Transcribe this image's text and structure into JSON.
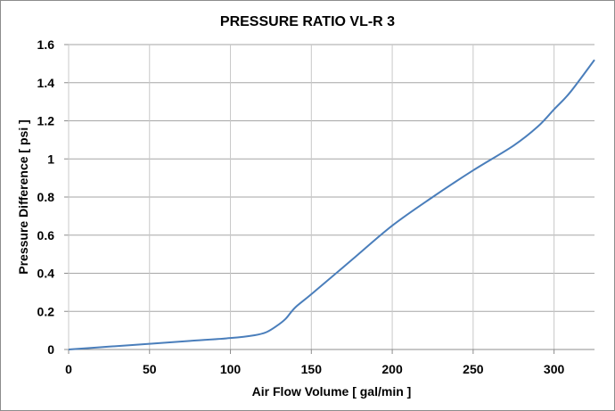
{
  "chart_data": {
    "type": "line",
    "title": "PRESSURE RATIO  VL-R 3",
    "xlabel": "Air Flow Volume  [ gal/min ]",
    "ylabel": "Pressure Difference  [ psi ]",
    "xlim": [
      0,
      325
    ],
    "ylim": [
      0,
      1.6
    ],
    "xticks": [
      0,
      50,
      100,
      150,
      200,
      250,
      300
    ],
    "xtick_labels": [
      "0",
      "50",
      "100",
      "150",
      "200",
      "250",
      "300"
    ],
    "yticks": [
      0,
      0.2,
      0.4,
      0.6,
      0.8,
      1.0,
      1.2,
      1.4,
      1.6
    ],
    "ytick_labels": [
      "0",
      "0.2",
      "0.4",
      "0.6",
      "0.8",
      "1",
      "1.2",
      "1.4",
      "1.6"
    ],
    "grid": true,
    "legend": "none",
    "series": [
      {
        "name": "VL-R 3",
        "color": "#4a7ebb",
        "x": [
          0,
          25,
          50,
          75,
          100,
          115,
          122,
          128,
          134,
          140,
          150,
          175,
          200,
          225,
          250,
          275,
          290,
          300,
          310,
          325
        ],
        "y": [
          0,
          0.015,
          0.03,
          0.045,
          0.06,
          0.075,
          0.09,
          0.12,
          0.16,
          0.22,
          0.29,
          0.47,
          0.65,
          0.8,
          0.94,
          1.07,
          1.17,
          1.26,
          1.35,
          1.52
        ]
      }
    ]
  }
}
